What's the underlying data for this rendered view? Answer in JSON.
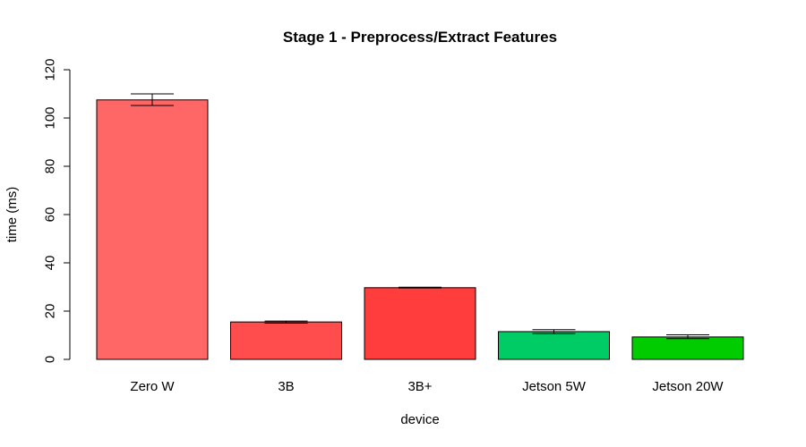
{
  "chart_data": {
    "type": "bar",
    "title": "Stage 1 - Preprocess/Extract Features",
    "xlabel": "device",
    "ylabel": "time (ms)",
    "ylim": [
      0,
      120
    ],
    "yticks": [
      0,
      20,
      40,
      60,
      80,
      100,
      120
    ],
    "categories": [
      "Zero W",
      "3B",
      "3B+",
      "Jetson 5W",
      "Jetson 20W"
    ],
    "values": [
      107.5,
      15.5,
      29.7,
      11.5,
      9.3
    ],
    "error_low": [
      105.2,
      15.0,
      29.6,
      10.7,
      8.6
    ],
    "error_high": [
      110.0,
      15.9,
      29.9,
      12.3,
      10.2
    ],
    "colors": [
      "#ff6666",
      "#ff4d4d",
      "#ff3d3d",
      "#00cc66",
      "#00cc00"
    ],
    "grid": false,
    "legend": "none"
  }
}
